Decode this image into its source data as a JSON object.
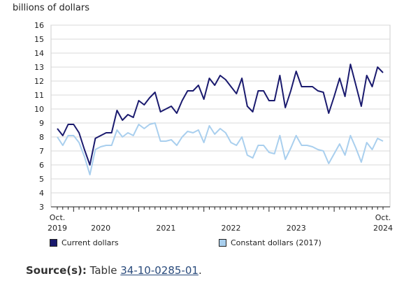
{
  "chart_data": {
    "type": "line",
    "ylabel": "billions of dollars",
    "ylim": [
      3,
      16
    ],
    "yticks": [
      3,
      4,
      5,
      6,
      7,
      8,
      9,
      10,
      11,
      12,
      13,
      14,
      15,
      16
    ],
    "x_start": "2019-10",
    "x_end": "2024-10",
    "xtick_labels": [
      {
        "month": "2019-10",
        "lines": [
          "Oct.",
          "2019"
        ]
      },
      {
        "month": "2020-06",
        "lines": [
          "",
          "2020"
        ]
      },
      {
        "month": "2021-06",
        "lines": [
          "",
          "2021"
        ]
      },
      {
        "month": "2022-06",
        "lines": [
          "",
          "2022"
        ]
      },
      {
        "month": "2023-06",
        "lines": [
          "",
          "2023"
        ]
      },
      {
        "month": "2024-10",
        "lines": [
          "Oct.",
          "2024"
        ]
      }
    ],
    "grid": "horizontal",
    "legend_position": "bottom",
    "series": [
      {
        "name": "Current dollars",
        "color": "#1a1a6e",
        "values": [
          8.6,
          8.1,
          8.9,
          8.9,
          8.3,
          7.1,
          6.0,
          7.9,
          8.1,
          8.3,
          8.3,
          9.9,
          9.2,
          9.6,
          9.4,
          10.6,
          10.3,
          10.8,
          11.2,
          9.8,
          10.0,
          10.2,
          9.7,
          10.6,
          11.3,
          11.3,
          11.7,
          10.7,
          12.2,
          11.7,
          12.4,
          12.1,
          11.6,
          11.1,
          12.2,
          10.2,
          9.8,
          11.3,
          11.3,
          10.6,
          10.6,
          12.4,
          10.1,
          11.3,
          12.7,
          11.6,
          11.6,
          11.6,
          11.3,
          11.2,
          9.7,
          10.9,
          12.2,
          10.9,
          13.2,
          11.7,
          10.2,
          12.4,
          11.6,
          13.0,
          12.6
        ]
      },
      {
        "name": "Constant dollars (2017)",
        "color": "#a9cfee",
        "values": [
          8.0,
          7.4,
          8.1,
          8.1,
          7.6,
          6.6,
          5.3,
          7.1,
          7.3,
          7.4,
          7.4,
          8.5,
          8.0,
          8.3,
          8.1,
          8.9,
          8.6,
          8.9,
          9.0,
          7.7,
          7.7,
          7.8,
          7.4,
          8.0,
          8.4,
          8.3,
          8.5,
          7.6,
          8.8,
          8.2,
          8.6,
          8.3,
          7.6,
          7.4,
          8.0,
          6.7,
          6.5,
          7.4,
          7.4,
          6.9,
          6.8,
          8.1,
          6.4,
          7.2,
          8.1,
          7.4,
          7.4,
          7.3,
          7.1,
          7.0,
          6.1,
          6.8,
          7.5,
          6.7,
          8.1,
          7.2,
          6.2,
          7.6,
          7.1,
          7.9,
          7.7
        ]
      }
    ]
  },
  "source": {
    "label": "Source(s):",
    "prefix": "Table",
    "link_text": "34-10-0285-01",
    "suffix": "."
  }
}
